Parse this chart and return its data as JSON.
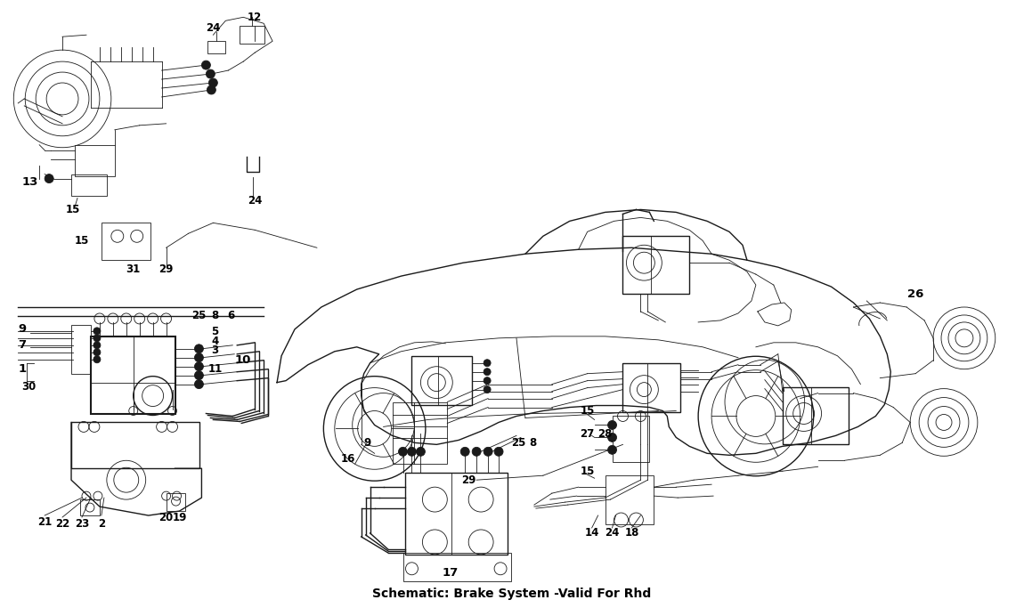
{
  "title": "Schematic: Brake System -Valid For Rhd",
  "bg_color": "#ffffff",
  "line_color": "#1a1a1a",
  "fig_width": 11.5,
  "fig_height": 6.83,
  "dpi": 100,
  "label_fontsize": 8.5,
  "title_fontsize": 10
}
